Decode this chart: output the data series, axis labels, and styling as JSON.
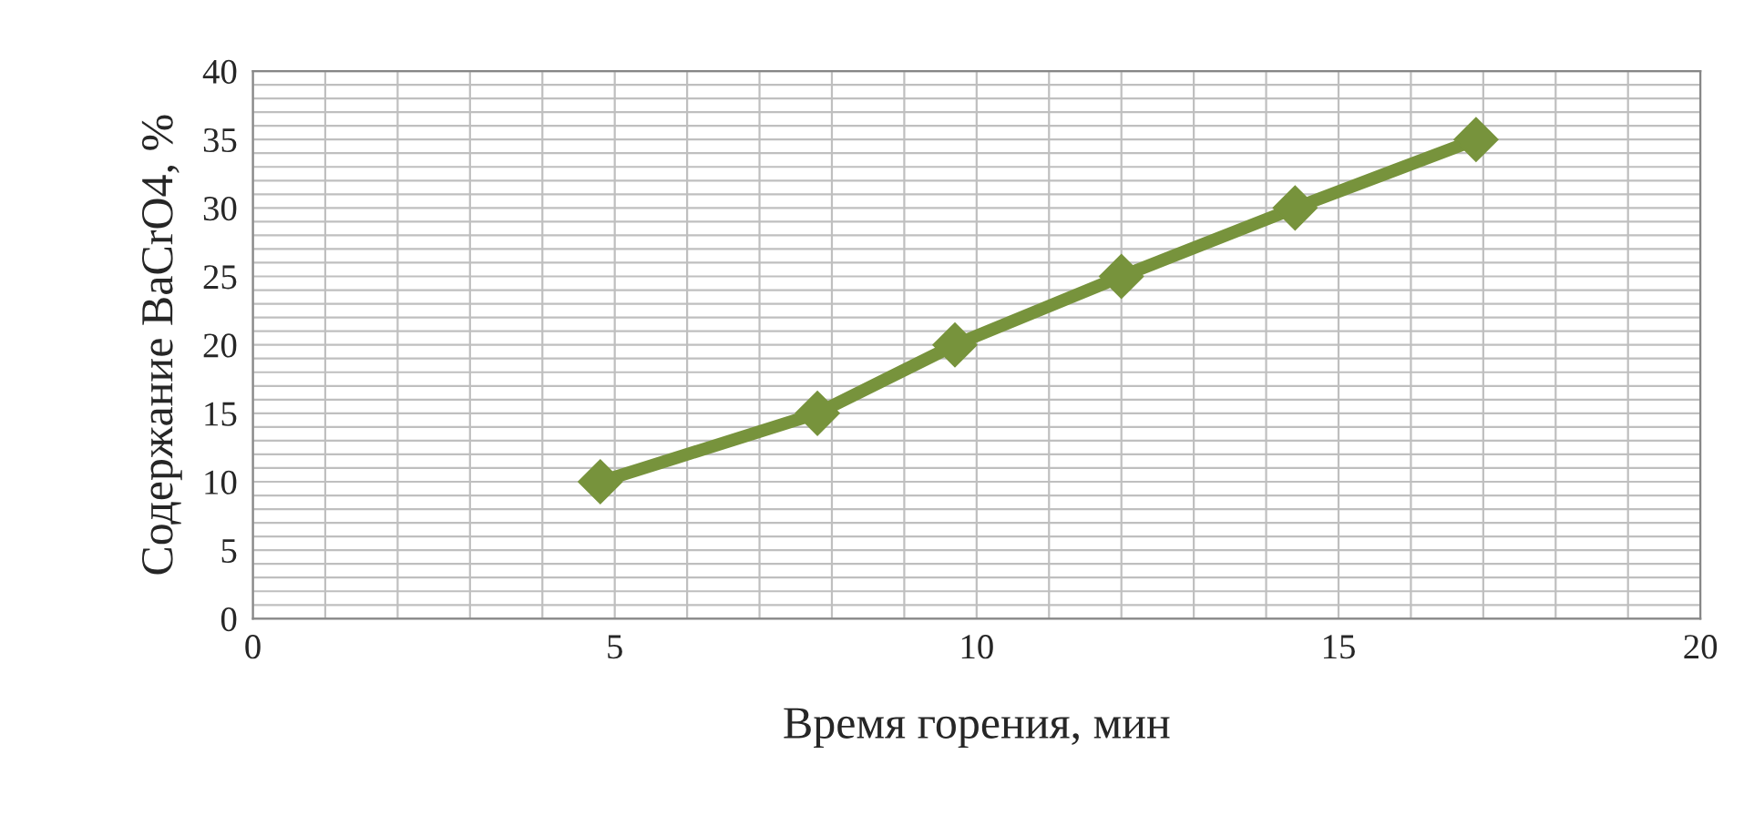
{
  "chart_data": {
    "type": "line",
    "xlabel": "Время горения, мин",
    "ylabel": "Содержание BaCrO4, %",
    "x": [
      4.8,
      7.8,
      9.7,
      12.0,
      14.4,
      16.9
    ],
    "series": [
      {
        "color": "#77933c",
        "values": [
          10,
          15,
          20,
          25,
          30,
          35
        ]
      }
    ],
    "xlim": [
      0,
      20
    ],
    "ylim": [
      0,
      40
    ],
    "xticks": [
      0,
      {
        "value": 1,
        "label": null
      },
      {
        "value": 2,
        "label": null
      },
      {
        "value": 3,
        "label": null
      },
      {
        "value": 4,
        "label": null
      },
      5,
      {
        "value": 6,
        "label": null
      },
      {
        "value": 7,
        "label": null
      },
      {
        "value": 8,
        "label": null
      },
      {
        "value": 9,
        "label": null
      },
      10,
      {
        "value": 11,
        "label": null
      },
      {
        "value": 12,
        "label": null
      },
      {
        "value": 13,
        "label": null
      },
      {
        "value": 14,
        "label": null
      },
      15,
      {
        "value": 16,
        "label": null
      },
      {
        "value": 17,
        "label": null
      },
      {
        "value": 18,
        "label": null
      },
      {
        "value": 19,
        "label": null
      },
      20
    ],
    "yticks": [
      0,
      {
        "value": 1,
        "label": null
      },
      {
        "value": 2,
        "label": null
      },
      {
        "value": 3,
        "label": null
      },
      {
        "value": 4,
        "label": null
      },
      5,
      {
        "value": 6,
        "label": null
      },
      {
        "value": 7,
        "label": null
      },
      {
        "value": 8,
        "label": null
      },
      {
        "value": 9,
        "label": null
      },
      10,
      {
        "value": 11,
        "label": null
      },
      {
        "value": 12,
        "label": null
      },
      {
        "value": 13,
        "label": null
      },
      {
        "value": 14,
        "label": null
      },
      15,
      {
        "value": 16,
        "label": null
      },
      {
        "value": 17,
        "label": null
      },
      {
        "value": 18,
        "label": null
      },
      {
        "value": 19,
        "label": null
      },
      20,
      {
        "value": 21,
        "label": null
      },
      {
        "value": 22,
        "label": null
      },
      {
        "value": 23,
        "label": null
      },
      {
        "value": 24,
        "label": null
      },
      25,
      {
        "value": 26,
        "label": null
      },
      {
        "value": 27,
        "label": null
      },
      {
        "value": 28,
        "label": null
      },
      {
        "value": 29,
        "label": null
      },
      30,
      {
        "value": 31,
        "label": null
      },
      {
        "value": 32,
        "label": null
      },
      {
        "value": 33,
        "label": null
      },
      {
        "value": 34,
        "label": null
      },
      35,
      {
        "value": 36,
        "label": null
      },
      {
        "value": 37,
        "label": null
      },
      {
        "value": 38,
        "label": null
      },
      {
        "value": 39,
        "label": null
      },
      40
    ],
    "grid": true,
    "marker": "diamond",
    "line_style": "solid",
    "legend": false
  }
}
